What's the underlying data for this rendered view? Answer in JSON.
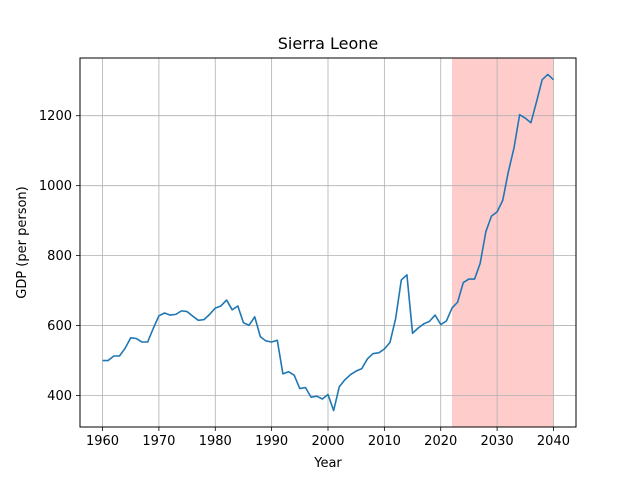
{
  "chart_data": {
    "type": "line",
    "title": "Sierra Leone",
    "xlabel": "Year",
    "ylabel": "GDP (per person)",
    "xlim": [
      1956,
      2044
    ],
    "ylim": [
      310,
      1365
    ],
    "xticks": [
      1960,
      1970,
      1980,
      1990,
      2000,
      2010,
      2020,
      2030,
      2040
    ],
    "yticks": [
      400,
      600,
      800,
      1000,
      1200
    ],
    "grid": true,
    "line_color": "#1f77b4",
    "shaded_region": {
      "x_start": 2022,
      "x_end": 2040,
      "color": "#ff9999"
    },
    "series": [
      {
        "x": [
          1960,
          1961,
          1962,
          1963,
          1964,
          1965,
          1966,
          1967,
          1968,
          1969,
          1970,
          1971,
          1972,
          1973,
          1974,
          1975,
          1976,
          1977,
          1978,
          1979,
          1980,
          1981,
          1982,
          1983,
          1984,
          1985,
          1986,
          1987,
          1988,
          1989,
          1990,
          1991,
          1992,
          1993,
          1994,
          1995,
          1996,
          1997,
          1998,
          1999,
          2000,
          2001,
          2002,
          2003,
          2004,
          2005,
          2006,
          2007,
          2008,
          2009,
          2010,
          2011,
          2012,
          2013,
          2014,
          2015,
          2016,
          2017,
          2018,
          2019,
          2020,
          2021,
          2022,
          2023,
          2024,
          2025,
          2026,
          2027,
          2028,
          2029,
          2030,
          2031,
          2032,
          2033,
          2034,
          2035,
          2036,
          2037,
          2038,
          2039,
          2040
        ],
        "values": [
          500,
          500,
          513,
          513,
          535,
          565,
          563,
          553,
          553,
          592,
          628,
          636,
          630,
          632,
          642,
          640,
          627,
          615,
          617,
          632,
          650,
          656,
          673,
          645,
          656,
          608,
          601,
          625,
          568,
          556,
          553,
          558,
          462,
          468,
          458,
          420,
          423,
          395,
          398,
          390,
          403,
          357,
          425,
          445,
          460,
          470,
          477,
          505,
          520,
          522,
          533,
          552,
          620,
          730,
          745,
          578,
          593,
          605,
          612,
          630,
          603,
          613,
          650,
          667,
          723,
          733,
          733,
          778,
          868,
          913,
          925,
          958,
          1040,
          1108,
          1203,
          1193,
          1180,
          1240,
          1303,
          1318,
          1303
        ]
      }
    ]
  }
}
